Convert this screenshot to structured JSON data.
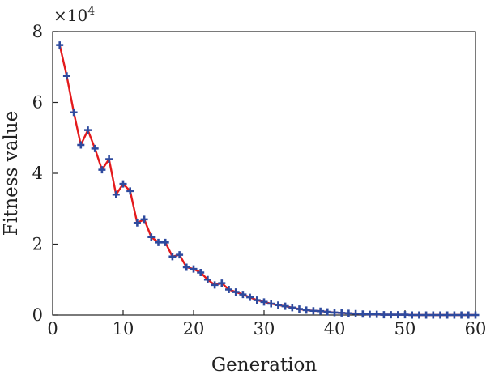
{
  "chart_data": {
    "type": "line",
    "title": "",
    "xlabel": "Generation",
    "ylabel": "Fitness value",
    "y_multiplier_label": "×10",
    "y_multiplier_exponent": "4",
    "xlim": [
      0,
      60
    ],
    "ylim": [
      0,
      8
    ],
    "x_ticks": [
      0,
      10,
      20,
      30,
      40,
      50,
      60
    ],
    "y_ticks": [
      0,
      2,
      4,
      6,
      8
    ],
    "grid": false,
    "line_color": "#e41a1c",
    "marker_color": "#2e4a9e",
    "marker": "plus",
    "series": [
      {
        "x": [
          1,
          2,
          3,
          4,
          5,
          6,
          7,
          8,
          9,
          10,
          11,
          12,
          13,
          14,
          15,
          16,
          17,
          18,
          19,
          20,
          21,
          22,
          23,
          24,
          25,
          26,
          27,
          28,
          29,
          30,
          31,
          32,
          33,
          34,
          35,
          36,
          37,
          38,
          39,
          40,
          41,
          42,
          43,
          44,
          45,
          46,
          47,
          48,
          49,
          50,
          51,
          52,
          53,
          54,
          55,
          56,
          57,
          58,
          59,
          60
        ],
        "values": [
          7.62,
          6.75,
          5.72,
          4.8,
          5.22,
          4.7,
          4.1,
          4.4,
          3.4,
          3.7,
          3.5,
          2.6,
          2.7,
          2.2,
          2.05,
          2.05,
          1.65,
          1.7,
          1.35,
          1.3,
          1.2,
          1.0,
          0.85,
          0.9,
          0.72,
          0.65,
          0.58,
          0.5,
          0.42,
          0.37,
          0.32,
          0.28,
          0.25,
          0.21,
          0.17,
          0.14,
          0.12,
          0.11,
          0.09,
          0.07,
          0.06,
          0.05,
          0.04,
          0.03,
          0.02,
          0.02,
          0.01,
          0.01,
          0.01,
          0.01,
          0.0,
          0.0,
          0.0,
          0.0,
          0.0,
          0.0,
          0.0,
          0.0,
          0.0,
          0.0
        ]
      }
    ]
  }
}
